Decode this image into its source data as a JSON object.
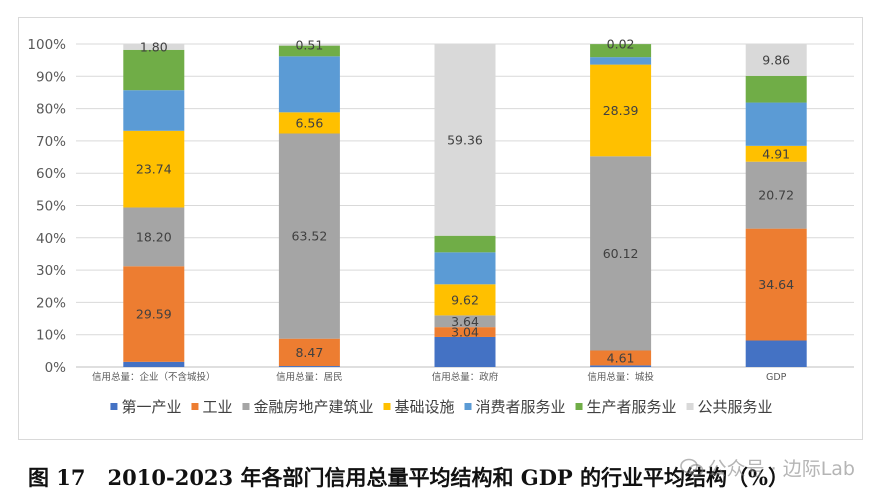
{
  "chart_data": {
    "type": "stacked-bar",
    "categories": [
      "信用总量：企业（不含城投）",
      "信用总量：居民",
      "信用总量：政府",
      "信用总量：城投",
      "GDP"
    ],
    "ylim": [
      0,
      100
    ],
    "yticks": [
      "0%",
      "10%",
      "20%",
      "30%",
      "40%",
      "50%",
      "60%",
      "70%",
      "80%",
      "90%",
      "100%"
    ],
    "grid": true,
    "legend_position": "bottom",
    "series": [
      {
        "name": "第一产业",
        "color": "#4472C4",
        "values": [
          1.6,
          0.3,
          9.3,
          0.5,
          8.2
        ],
        "labels": [
          "",
          "",
          "",
          "",
          ""
        ]
      },
      {
        "name": "工业",
        "color": "#ED7D31",
        "values": [
          29.59,
          8.47,
          3.04,
          4.61,
          34.64
        ],
        "labels": [
          "29.59",
          "8.47",
          "3.04",
          "4.61",
          "34.64"
        ]
      },
      {
        "name": "金融房地产建筑业",
        "color": "#A5A5A5",
        "values": [
          18.2,
          63.52,
          3.64,
          60.12,
          20.72
        ],
        "labels": [
          "18.20",
          "63.52",
          "3.64",
          "60.12",
          "20.72"
        ]
      },
      {
        "name": "基础设施",
        "color": "#FFC000",
        "values": [
          23.74,
          6.56,
          9.62,
          28.39,
          4.91
        ],
        "labels": [
          "23.74",
          "6.56",
          "9.62",
          "28.39",
          "4.91"
        ]
      },
      {
        "name": "消费者服务业",
        "color": "#5B9BD5",
        "values": [
          12.57,
          17.34,
          9.9,
          2.31,
          13.4
        ],
        "labels": [
          "",
          "",
          "",
          "",
          ""
        ]
      },
      {
        "name": "生产者服务业",
        "color": "#70AD47",
        "values": [
          12.5,
          3.3,
          5.14,
          4.05,
          8.27
        ],
        "labels": [
          "",
          "",
          "",
          "",
          ""
        ]
      },
      {
        "name": "公共服务业",
        "color": "#D9D9D9",
        "values": [
          1.8,
          0.51,
          59.36,
          0.02,
          9.86
        ],
        "labels": [
          "1.80",
          "0.51",
          "59.36",
          "0.02",
          "9.86"
        ]
      }
    ]
  },
  "caption": {
    "figure_number": "图 17",
    "title": "2010-2023 年各部门信用总量平均结构和 GDP 的行业平均结构（%）"
  },
  "watermark": "公众号 · 边际Lab"
}
